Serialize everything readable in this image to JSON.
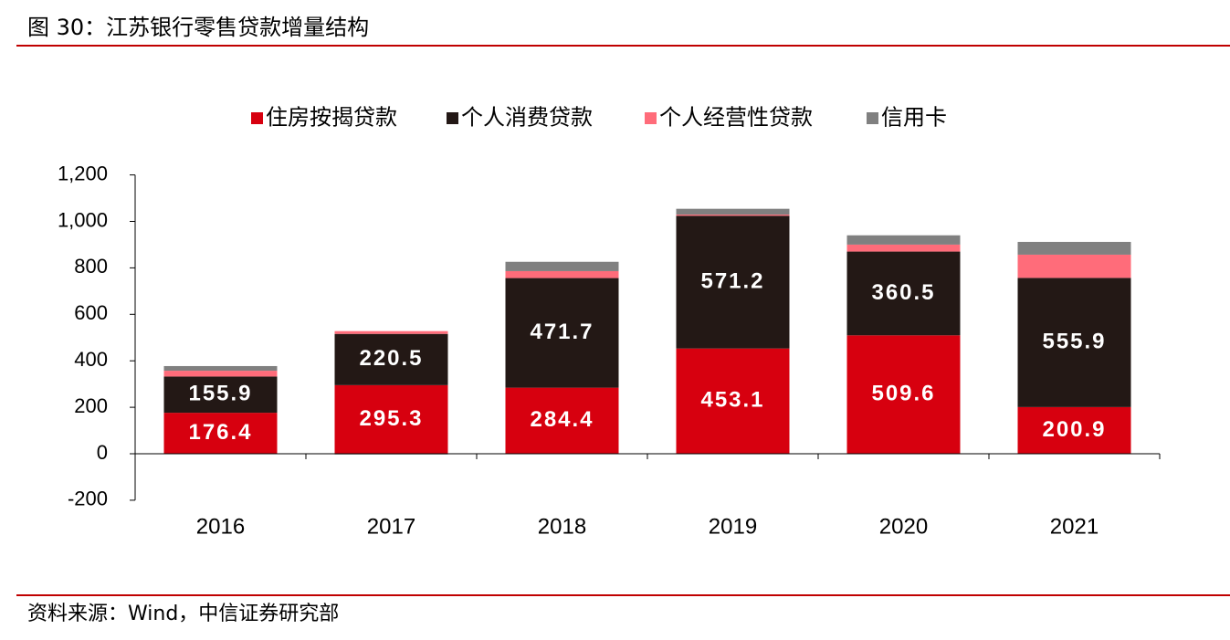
{
  "figure_title": "图 30：江苏银行零售贷款增量结构",
  "source": "资料来源：Wind，中信证券研究部",
  "colors": {
    "mortgage": "#d7000f",
    "consumer": "#231815",
    "business": "#ff6c7a",
    "credit_card": "#808080",
    "label_text": "#ffffff",
    "rule": "#c00000"
  },
  "chart_data": {
    "type": "bar",
    "stacked": true,
    "title": "",
    "xlabel": "",
    "ylabel": "",
    "categories": [
      "2016",
      "2017",
      "2018",
      "2019",
      "2020",
      "2021"
    ],
    "ylim": [
      -200,
      1200
    ],
    "yticks": [
      -200,
      0,
      200,
      400,
      600,
      800,
      1000,
      1200
    ],
    "ytick_labels": [
      "-200",
      "0",
      "200",
      "400",
      "600",
      "800",
      "1,000",
      "1,200"
    ],
    "legend_position": "top-center",
    "series": [
      {
        "name": "住房按揭贷款",
        "color_key": "mortgage",
        "values": [
          176.4,
          295.3,
          284.4,
          453.1,
          509.6,
          200.9
        ],
        "labels": [
          "176.4",
          "295.3",
          "284.4",
          "453.1",
          "509.6",
          "200.9"
        ]
      },
      {
        "name": "个人消费贷款",
        "color_key": "consumer",
        "values": [
          155.9,
          220.5,
          471.7,
          571.2,
          360.5,
          555.9
        ],
        "labels": [
          "155.9",
          "220.5",
          "471.7",
          "571.2",
          "360.5",
          "555.9"
        ]
      },
      {
        "name": "个人经营性贷款",
        "color_key": "business",
        "values": [
          25,
          12,
          30,
          5,
          30,
          100
        ],
        "labels": []
      },
      {
        "name": "信用卡",
        "color_key": "credit_card",
        "values": [
          20,
          -3,
          40,
          25,
          40,
          55
        ],
        "labels": []
      }
    ]
  }
}
